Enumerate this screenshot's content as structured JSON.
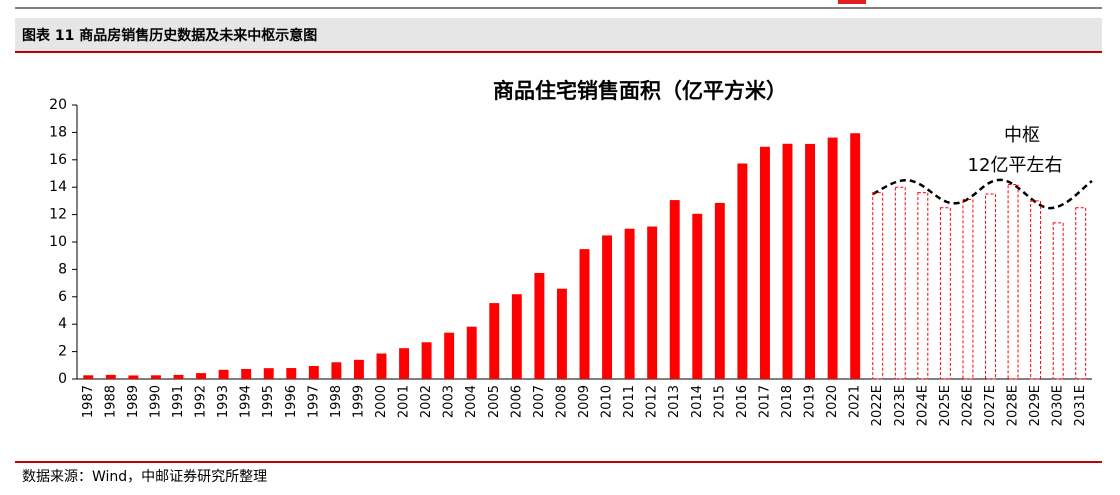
{
  "header": {
    "title": "图表 11 商品房销售历史数据及未来中枢示意图"
  },
  "source": "数据来源：Wind，中邮证券研究所整理",
  "chart_data": {
    "type": "bar",
    "title": "商品住宅销售面积（亿平方米）",
    "annotations": [
      "中枢",
      "12亿平左右"
    ],
    "categories": [
      "1987",
      "1988",
      "1989",
      "1990",
      "1991",
      "1992",
      "1993",
      "1994",
      "1995",
      "1996",
      "1997",
      "1998",
      "1999",
      "2000",
      "2001",
      "2002",
      "2003",
      "2004",
      "2005",
      "2006",
      "2007",
      "2008",
      "2009",
      "2010",
      "2011",
      "2012",
      "2013",
      "2014",
      "2015",
      "2016",
      "2017",
      "2018",
      "2019",
      "2020",
      "2021",
      "2022E",
      "2023E",
      "2024E",
      "2025E",
      "2026E",
      "2027E",
      "2028E",
      "2029E",
      "2030E",
      "2031E"
    ],
    "series": [
      {
        "color": "#ff0000",
        "style": "solid",
        "values": [
          0.27,
          0.3,
          0.26,
          0.27,
          0.3,
          0.43,
          0.67,
          0.73,
          0.79,
          0.8,
          0.95,
          1.22,
          1.4,
          1.86,
          2.25,
          2.68,
          3.38,
          3.82,
          5.54,
          6.19,
          7.74,
          6.59,
          9.48,
          10.48,
          10.97,
          11.13,
          13.06,
          12.06,
          12.85,
          15.73,
          16.95,
          17.17,
          17.16,
          17.62,
          17.94,
          null,
          null,
          null,
          null,
          null,
          null,
          null,
          null,
          null,
          null
        ]
      },
      {
        "color": "#ff0000",
        "style": "dashed",
        "values": [
          null,
          null,
          null,
          null,
          null,
          null,
          null,
          null,
          null,
          null,
          null,
          null,
          null,
          null,
          null,
          null,
          null,
          null,
          null,
          null,
          null,
          null,
          null,
          null,
          null,
          null,
          null,
          null,
          null,
          null,
          null,
          null,
          null,
          null,
          null,
          13.6,
          14.0,
          13.6,
          12.5,
          13.1,
          13.5,
          14.2,
          13.0,
          11.4,
          12.5
        ]
      }
    ],
    "ylim": [
      0,
      20
    ],
    "yticks": [
      0,
      2,
      4,
      6,
      8,
      10,
      12,
      14,
      16,
      18,
      20
    ]
  }
}
